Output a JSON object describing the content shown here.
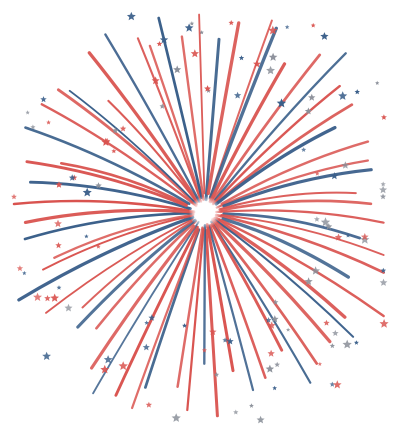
{
  "illustration": {
    "subject": "firework-burst",
    "colors": {
      "background": "#ffffff",
      "red": "#d9534f",
      "blue": "#3a5f8a",
      "star_gray": "#8a8f99",
      "core_white": "#ffffff"
    },
    "icon_names": [
      "star-icon"
    ]
  }
}
